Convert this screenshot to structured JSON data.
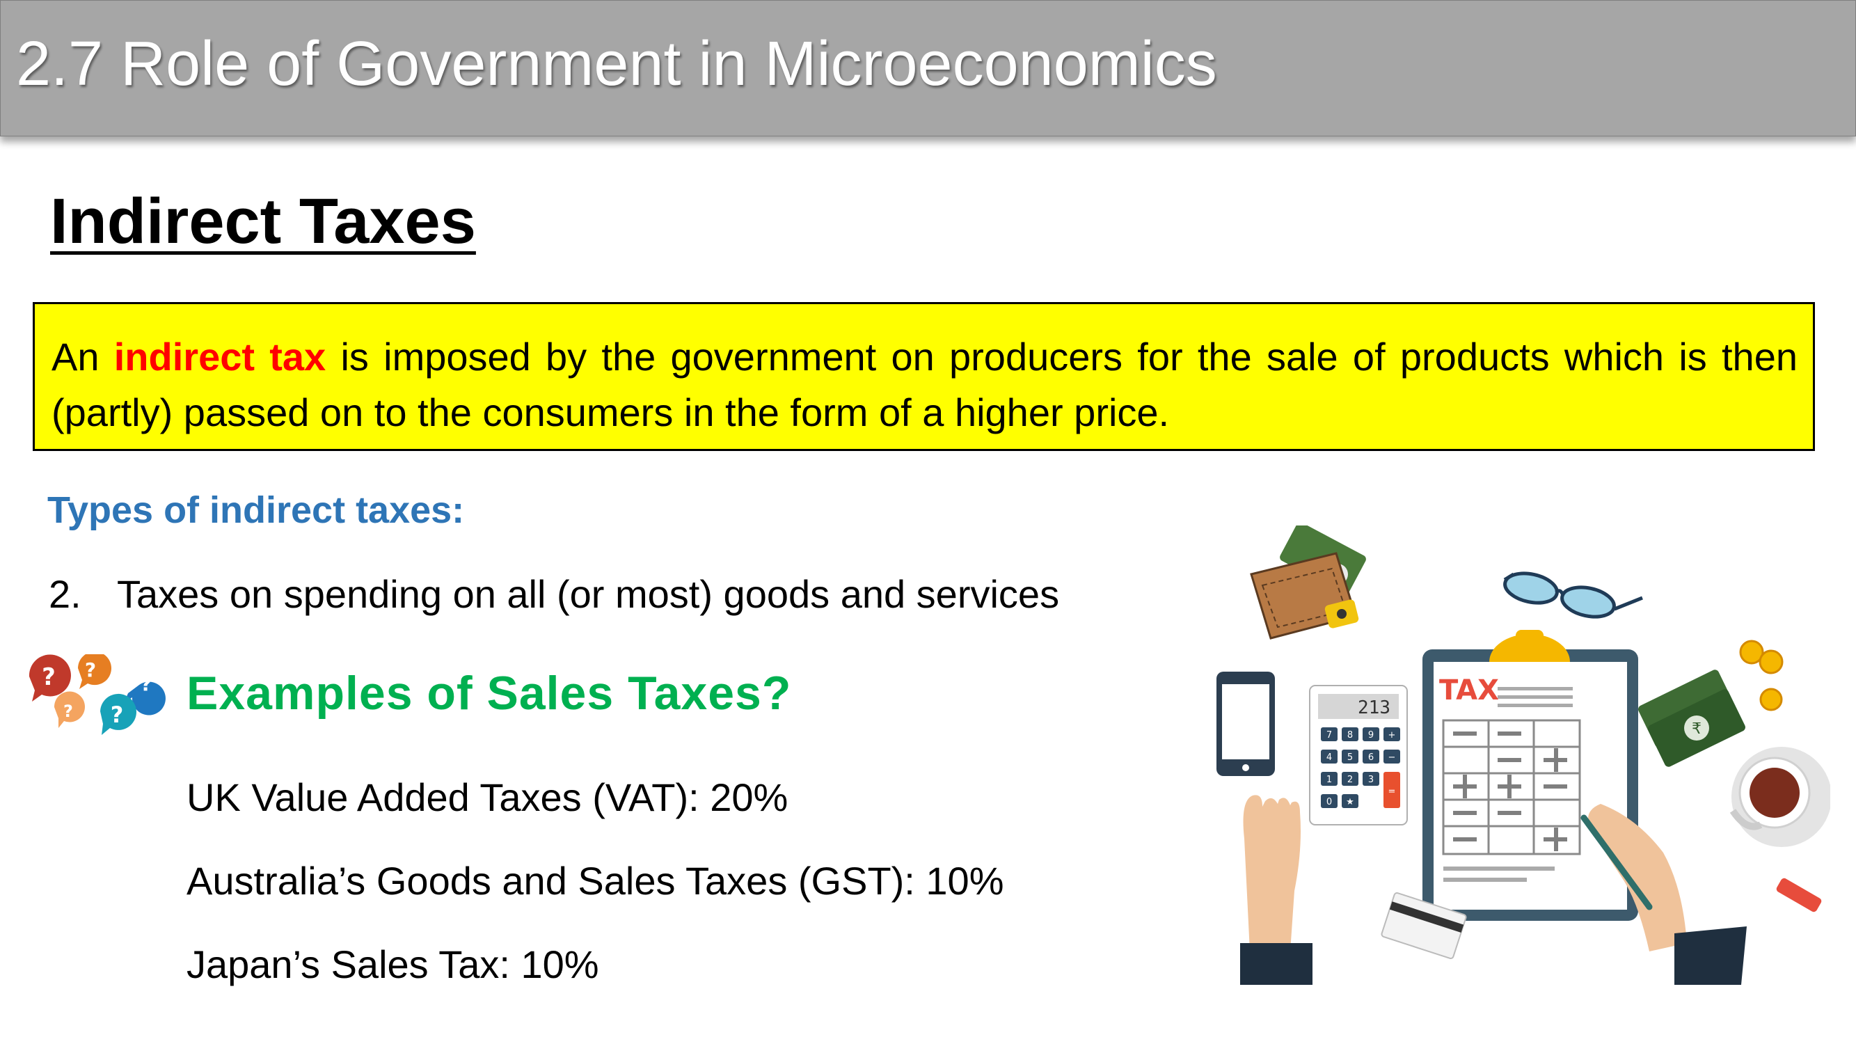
{
  "header": {
    "title": "2.7 Role of Government in Microeconomics"
  },
  "section": {
    "title": "Indirect Taxes"
  },
  "definition": {
    "prefix": "An ",
    "term": "indirect tax",
    "rest": " is imposed by the government on producers for the sale of products which is then (partly) passed on to the consumers in the form of a higher price."
  },
  "types": {
    "heading": "Types of indirect taxes:",
    "items": [
      {
        "number": "2.",
        "text": "Taxes on spending on all (or most) goods and services"
      }
    ]
  },
  "examples": {
    "heading": "Examples of Sales Taxes?",
    "items": [
      "UK Value Added Taxes (VAT): 20%",
      "Australia’s Goods and Sales Taxes (GST): 10%",
      "Japan’s Sales Tax: 10%"
    ]
  },
  "question_icon": {
    "glyph": "?"
  },
  "illustration": {
    "tax_label": "TAX",
    "calculator_display": "213",
    "keypad": [
      "7",
      "8",
      "9",
      "+",
      "4",
      "5",
      "6",
      "−",
      "1",
      "2",
      "3",
      "=",
      "0",
      "★"
    ],
    "currency_symbol": "₹"
  }
}
